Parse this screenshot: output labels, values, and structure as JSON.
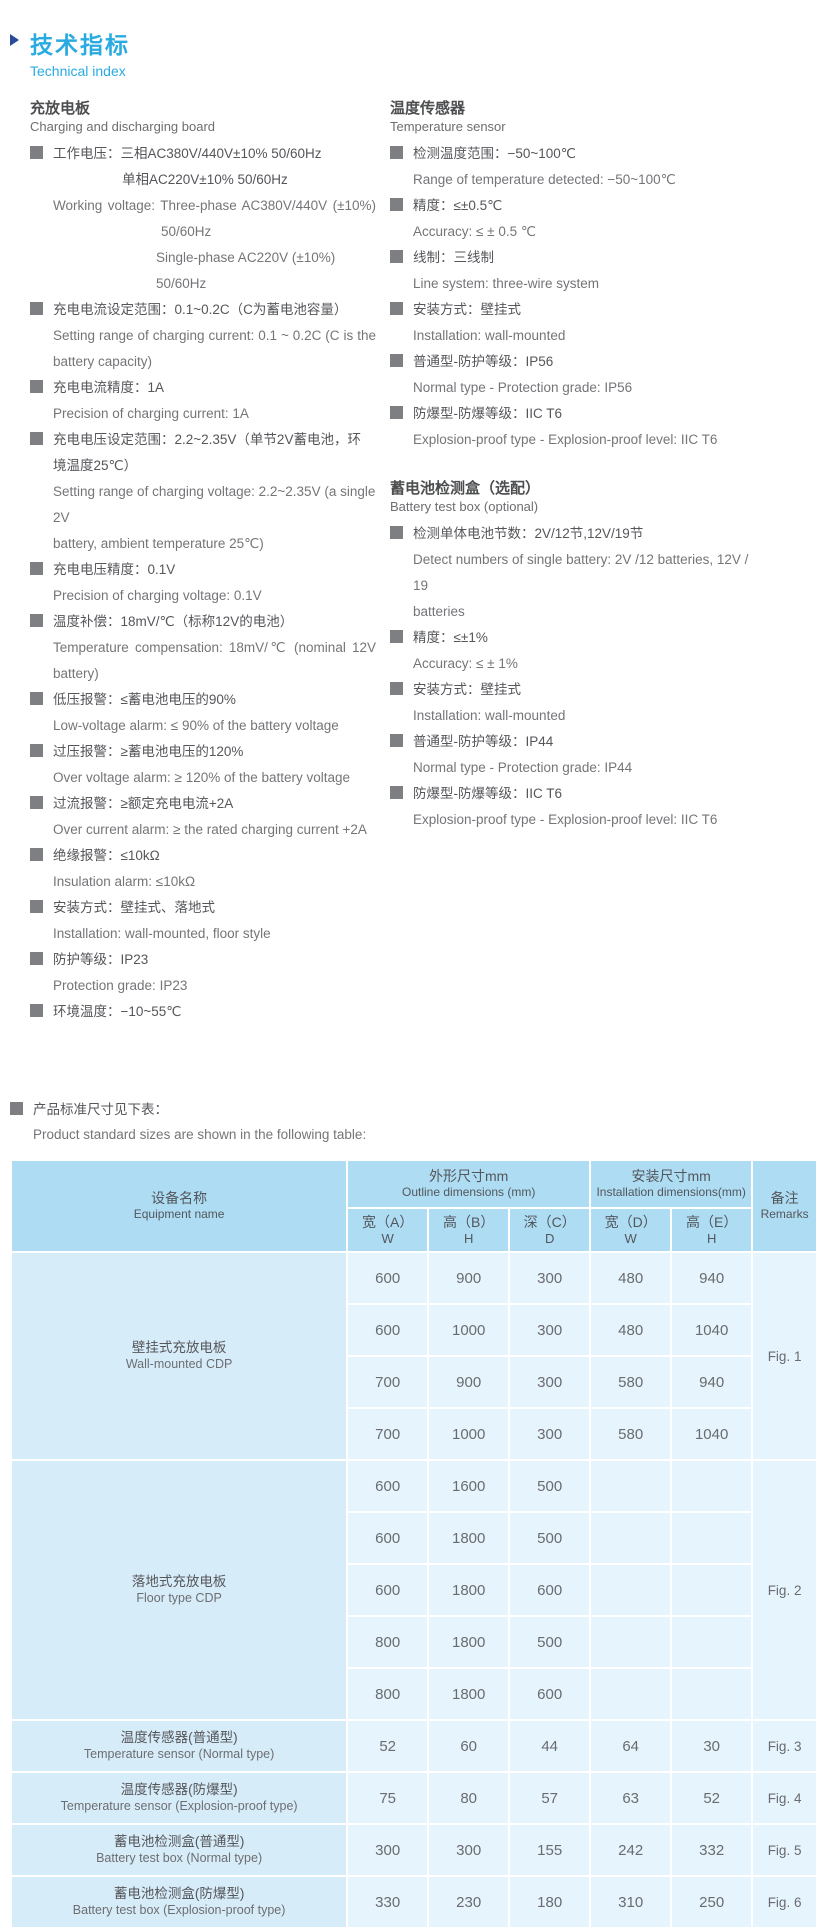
{
  "header": {
    "title_cn": "技术指标",
    "title_en": "Technical index"
  },
  "colors": {
    "accent": "#29abe2",
    "arrow": "#2a4b9b",
    "bullet_grey": "#7d7f82",
    "table_header_bg": "#aedcf3",
    "table_name_bg": "#d7ecf9",
    "table_cell_bg": "#e6f4fd"
  },
  "sections": [
    {
      "id": "charging-board",
      "column": "left",
      "heading_cn": "充放电板",
      "heading_en": "Charging and discharging board",
      "items": [
        {
          "lines": [
            {
              "t": "工作电压：三相AC380V/440V±10%  50/60Hz",
              "s": "cn"
            },
            {
              "t": "单相AC220V±10%   50/60Hz",
              "s": "cndeep"
            },
            {
              "t": "Working voltage: Three-phase AC380V/440V (±10%)",
              "s": "en",
              "j": true
            },
            {
              "t": "50/60Hz",
              "s": "enmid"
            },
            {
              "t": "Single-phase AC220V (±10%) 50/60Hz",
              "s": "endeep"
            }
          ]
        },
        {
          "lines": [
            {
              "t": "充电电流设定范围：0.1~0.2C（C为蓄电池容量）",
              "s": "cn"
            },
            {
              "t": "Setting range of charging current: 0.1 ~ 0.2C (C is the",
              "s": "en",
              "j": true
            },
            {
              "t": "battery capacity)",
              "s": "enwrap"
            }
          ]
        },
        {
          "lines": [
            {
              "t": "充电电流精度：1A",
              "s": "cn"
            },
            {
              "t": "Precision of charging current: 1A",
              "s": "en"
            }
          ]
        },
        {
          "lines": [
            {
              "t": "充电电压设定范围：2.2~2.35V（单节2V蓄电池，环",
              "s": "cn"
            },
            {
              "t": "境温度25℃）",
              "s": "cnwrap"
            },
            {
              "t": "Setting range of charging voltage: 2.2~2.35V (a single 2V",
              "s": "en"
            },
            {
              "t": "battery, ambient temperature 25℃)",
              "s": "enwrap"
            }
          ]
        },
        {
          "lines": [
            {
              "t": "充电电压精度：0.1V",
              "s": "cn"
            },
            {
              "t": "Precision of charging voltage: 0.1V",
              "s": "en"
            }
          ]
        },
        {
          "lines": [
            {
              "t": "温度补偿：18mV/℃（标称12V的电池）",
              "s": "cn"
            },
            {
              "t": "Temperature compensation: 18mV/℃ (nominal 12V",
              "s": "en",
              "j": true
            },
            {
              "t": "battery)",
              "s": "enwrap"
            }
          ]
        },
        {
          "lines": [
            {
              "t": "低压报警：≤蓄电池电压的90%",
              "s": "cn"
            },
            {
              "t": "Low-voltage alarm: ≤ 90% of the battery voltage",
              "s": "en"
            }
          ]
        },
        {
          "lines": [
            {
              "t": "过压报警：≥蓄电池电压的120%",
              "s": "cn"
            },
            {
              "t": "Over voltage alarm: ≥ 120% of the battery voltage",
              "s": "en"
            }
          ]
        },
        {
          "lines": [
            {
              "t": "过流报警：≥额定充电电流+2A",
              "s": "cn"
            },
            {
              "t": "Over current alarm: ≥ the rated charging current +2A",
              "s": "en"
            }
          ]
        },
        {
          "lines": [
            {
              "t": "绝缘报警：≤10kΩ",
              "s": "cn"
            },
            {
              "t": "Insulation alarm: ≤10kΩ",
              "s": "en"
            }
          ]
        },
        {
          "lines": [
            {
              "t": "安装方式：壁挂式、落地式",
              "s": "cn"
            },
            {
              "t": "Installation: wall-mounted, floor style",
              "s": "en"
            }
          ]
        },
        {
          "lines": [
            {
              "t": "防护等级：IP23",
              "s": "cn"
            },
            {
              "t": "Protection grade: IP23",
              "s": "en"
            }
          ]
        },
        {
          "lines": [
            {
              "t": "环境温度：−10~55℃",
              "s": "cn"
            }
          ]
        }
      ]
    },
    {
      "id": "temperature-sensor",
      "column": "right",
      "heading_cn": "温度传感器",
      "heading_en": "Temperature sensor",
      "items": [
        {
          "lines": [
            {
              "t": "检测温度范围：−50~100℃",
              "s": "cn"
            },
            {
              "t": "Range of temperature detected: −50~100℃",
              "s": "en"
            }
          ]
        },
        {
          "lines": [
            {
              "t": "精度：≤±0.5℃",
              "s": "cn"
            },
            {
              "t": "Accuracy: ≤ ± 0.5 ℃",
              "s": "en"
            }
          ]
        },
        {
          "lines": [
            {
              "t": "线制：三线制",
              "s": "cn"
            },
            {
              "t": "Line system: three-wire system",
              "s": "en"
            }
          ]
        },
        {
          "lines": [
            {
              "t": "安装方式：壁挂式",
              "s": "cn"
            },
            {
              "t": "Installation: wall-mounted",
              "s": "en"
            }
          ]
        },
        {
          "lines": [
            {
              "t": "普通型-防护等级：IP56",
              "s": "cn"
            },
            {
              "t": "Normal type - Protection grade: IP56",
              "s": "en"
            }
          ]
        },
        {
          "lines": [
            {
              "t": "防爆型-防爆等级：IIC T6",
              "s": "cn"
            },
            {
              "t": "Explosion-proof type - Explosion-proof level: IIC T6",
              "s": "en"
            }
          ]
        }
      ]
    },
    {
      "id": "battery-test-box",
      "column": "right",
      "heading_cn": "蓄电池检测盒（选配）",
      "heading_en": "Battery test box (optional)",
      "items": [
        {
          "lines": [
            {
              "t": "检测单体电池节数：2V/12节,12V/19节",
              "s": "cn"
            },
            {
              "t": "Detect numbers of single battery: 2V /12 batteries, 12V / 19",
              "s": "en"
            },
            {
              "t": "batteries",
              "s": "enwrap"
            }
          ]
        },
        {
          "lines": [
            {
              "t": "精度：≤±1%",
              "s": "cn"
            },
            {
              "t": "Accuracy: ≤ ± 1%",
              "s": "en"
            }
          ]
        },
        {
          "lines": [
            {
              "t": "安装方式：壁挂式",
              "s": "cn"
            },
            {
              "t": "Installation: wall-mounted",
              "s": "en"
            }
          ]
        },
        {
          "lines": [
            {
              "t": "普通型-防护等级：IP44",
              "s": "cn"
            },
            {
              "t": "Normal type - Protection grade: IP44",
              "s": "en"
            }
          ]
        },
        {
          "lines": [
            {
              "t": "防爆型-防爆等级：IIC T6",
              "s": "cn"
            },
            {
              "t": "Explosion-proof type - Explosion-proof level: IIC T6",
              "s": "en"
            }
          ]
        }
      ]
    }
  ],
  "size_table": {
    "note_cn": "产品标准尺寸见下表：",
    "note_en": "Product standard sizes are shown in the following table:",
    "header": {
      "name_cn": "设备名称",
      "name_en": "Equipment name",
      "outline_cn": "外形尺寸mm",
      "outline_en": "Outline dimensions  (mm)",
      "install_cn": "安装尺寸mm",
      "install_en": "Installation dimensions(mm)",
      "remarks_cn": "备注",
      "remarks_en": "Remarks",
      "sub_cols": [
        {
          "cn": "宽（A）",
          "letter": "W"
        },
        {
          "cn": "高（B）",
          "letter": "H"
        },
        {
          "cn": "深（C）",
          "letter": "D"
        },
        {
          "cn": "宽（D）",
          "letter": "W"
        },
        {
          "cn": "高（E）",
          "letter": "H"
        }
      ]
    },
    "groups": [
      {
        "name_cn": "壁挂式充放电板",
        "name_en": "Wall-mounted CDP",
        "remark": "Fig. 1",
        "rows": [
          [
            "600",
            "900",
            "300",
            "480",
            "940"
          ],
          [
            "600",
            "1000",
            "300",
            "480",
            "1040"
          ],
          [
            "700",
            "900",
            "300",
            "580",
            "940"
          ],
          [
            "700",
            "1000",
            "300",
            "580",
            "1040"
          ]
        ]
      },
      {
        "name_cn": "落地式充放电板",
        "name_en": "Floor type CDP",
        "remark": "Fig. 2",
        "rows": [
          [
            "600",
            "1600",
            "500",
            "",
            ""
          ],
          [
            "600",
            "1800",
            "500",
            "",
            ""
          ],
          [
            "600",
            "1800",
            "600",
            "",
            ""
          ],
          [
            "800",
            "1800",
            "500",
            "",
            ""
          ],
          [
            "800",
            "1800",
            "600",
            "",
            ""
          ]
        ]
      },
      {
        "name_cn": "温度传感器(普通型)",
        "name_en": "Temperature sensor (Normal type)",
        "remark": "Fig. 3",
        "rows": [
          [
            "52",
            "60",
            "44",
            "64",
            "30"
          ]
        ]
      },
      {
        "name_cn": "温度传感器(防爆型)",
        "name_en": "Temperature sensor (Explosion-proof type)",
        "remark": "Fig. 4",
        "rows": [
          [
            "75",
            "80",
            "57",
            "63",
            "52"
          ]
        ]
      },
      {
        "name_cn": "蓄电池检测盒(普通型)",
        "name_en": "Battery test box (Normal type)",
        "remark": "Fig. 5",
        "rows": [
          [
            "300",
            "300",
            "155",
            "242",
            "332"
          ]
        ]
      },
      {
        "name_cn": "蓄电池检测盒(防爆型)",
        "name_en": "Battery test box (Explosion-proof type)",
        "remark": "Fig. 6",
        "rows": [
          [
            "330",
            "230",
            "180",
            "310",
            "250"
          ]
        ]
      }
    ]
  }
}
